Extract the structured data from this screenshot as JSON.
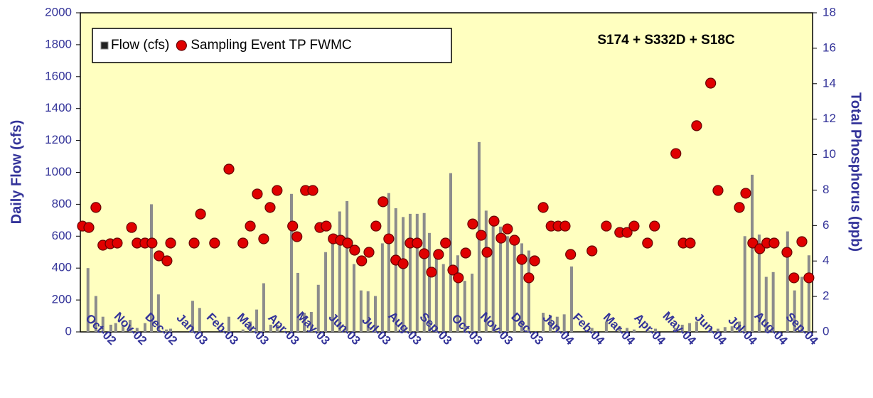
{
  "chart_data": {
    "type": "bar",
    "annotation": "S174 + S332D + S18C",
    "ylabel": "Daily Flow (cfs)",
    "y2label": "Total Phosphorus (ppb)",
    "xlim": [
      -1,
      23
    ],
    "xticks": [
      {
        "value": 0,
        "label": "Oct-02"
      },
      {
        "value": 1,
        "label": "Nov-02"
      },
      {
        "value": 2,
        "label": "Dec-02"
      },
      {
        "value": 3,
        "label": "Jan-03"
      },
      {
        "value": 4,
        "label": "Feb-03"
      },
      {
        "value": 5,
        "label": "Mar-03"
      },
      {
        "value": 6,
        "label": "Apr-03"
      },
      {
        "value": 7,
        "label": "May-03"
      },
      {
        "value": 8,
        "label": "Jun-03"
      },
      {
        "value": 9,
        "label": "Jul-03"
      },
      {
        "value": 10,
        "label": "Aug-03"
      },
      {
        "value": 11,
        "label": "Sep-03"
      },
      {
        "value": 12,
        "label": "Oct-03"
      },
      {
        "value": 13,
        "label": "Nov-03"
      },
      {
        "value": 14,
        "label": "Dec-03"
      },
      {
        "value": 15,
        "label": "Jan-04"
      },
      {
        "value": 16,
        "label": "Feb-04"
      },
      {
        "value": 17,
        "label": "Mar-04"
      },
      {
        "value": 18,
        "label": "Apr-04"
      },
      {
        "value": 19,
        "label": "May-04"
      },
      {
        "value": 20,
        "label": "Jun-04"
      },
      {
        "value": 21,
        "label": "Jul-04"
      },
      {
        "value": 22,
        "label": "Aug-04"
      },
      {
        "value": 23,
        "label": "Sep-04"
      }
    ],
    "ylim": [
      0,
      2000
    ],
    "yticks": [
      0,
      200,
      400,
      600,
      800,
      1000,
      1200,
      1400,
      1600,
      1800,
      2000
    ],
    "y2lim": [
      0,
      18
    ],
    "y2ticks": [
      0,
      2,
      4,
      6,
      8,
      10,
      12,
      14,
      16,
      18
    ],
    "legend": "top-left",
    "background": "#ffffc0",
    "series": [
      {
        "name": "Flow (cfs)",
        "type": "bar",
        "color": "#8c8c8c",
        "x": [
          -0.75,
          -0.49,
          -0.26,
          0,
          0.16,
          0.4,
          0.63,
          0.86,
          1.12,
          1.33,
          1.56,
          1.82,
          1.96,
          2.68,
          2.91,
          3.87,
          4.33,
          4.57,
          4.78,
          5.01,
          5.24,
          5.45,
          5.92,
          6.13,
          6.34,
          6.57,
          6.8,
          7.04,
          7.27,
          7.5,
          7.74,
          7.97,
          8.2,
          8.43,
          8.67,
          8.9,
          9.11,
          9.34,
          9.58,
          9.81,
          10.04,
          10.27,
          10.44,
          10.67,
          10.9,
          11.14,
          11.37,
          11.6,
          11.84,
          12.07,
          12.3,
          12.53,
          12.77,
          13,
          13.23,
          13.47,
          13.7,
          14.17,
          14.4,
          14.63,
          14.86,
          15.1,
          15.77,
          16.24,
          16.68,
          16.92,
          17.15,
          17.61,
          17.85,
          18.5,
          18.73,
          18.97,
          19.2,
          19.66,
          19.9,
          20.13,
          20.36,
          20.6,
          20.78,
          21.02,
          21.25,
          21.48,
          21.71,
          22.18,
          22.41,
          22.65,
          22.88
        ],
        "values": [
          400,
          225,
          95,
          45,
          55,
          45,
          75,
          25,
          55,
          800,
          235,
          15,
          20,
          195,
          150,
          95,
          15,
          65,
          140,
          305,
          45,
          45,
          865,
          370,
          120,
          125,
          295,
          500,
          590,
          755,
          820,
          425,
          260,
          255,
          225,
          555,
          870,
          775,
          720,
          740,
          740,
          745,
          620,
          460,
          425,
          995,
          480,
          320,
          365,
          1190,
          760,
          710,
          660,
          600,
          600,
          555,
          510,
          120,
          105,
          95,
          110,
          410,
          25,
          65,
          35,
          25,
          15,
          10,
          20,
          25,
          45,
          55,
          65,
          25,
          20,
          30,
          35,
          65,
          600,
          985,
          610,
          345,
          375,
          630,
          260,
          345,
          480
        ]
      },
      {
        "name": "Sampling Event TP FWMC",
        "type": "scatter",
        "axis": "y2",
        "color": "#e00000",
        "x": [
          -0.93,
          -0.72,
          -0.49,
          -0.26,
          -0.02,
          0.21,
          0.68,
          0.86,
          1.12,
          1.35,
          1.58,
          1.84,
          1.96,
          2.73,
          2.94,
          3.4,
          3.87,
          4.33,
          4.57,
          4.8,
          5.01,
          5.22,
          5.45,
          5.96,
          6.1,
          6.38,
          6.62,
          6.85,
          7.06,
          7.29,
          7.53,
          7.76,
          7.99,
          8.22,
          8.46,
          8.69,
          8.92,
          9.11,
          9.34,
          9.58,
          9.81,
          10.04,
          10.27,
          10.51,
          10.74,
          10.97,
          11.21,
          11.39,
          11.63,
          11.86,
          12.14,
          12.33,
          12.56,
          12.79,
          13,
          13.23,
          13.47,
          13.7,
          13.89,
          14.17,
          14.43,
          14.66,
          14.89,
          15.07,
          15.77,
          16.24,
          16.68,
          16.92,
          17.15,
          17.59,
          17.82,
          18.52,
          18.76,
          18.99,
          19.2,
          19.66,
          19.9,
          20.6,
          20.81,
          21.04,
          21.27,
          21.5,
          21.74,
          22.16,
          22.39,
          22.65,
          22.88
        ],
        "values": [
          5.97,
          5.89,
          7.02,
          4.89,
          4.97,
          5.01,
          5.89,
          5.01,
          5.01,
          5.01,
          4.29,
          4.01,
          5.01,
          5.01,
          6.65,
          5.01,
          9.18,
          5.01,
          5.97,
          7.78,
          5.25,
          7.02,
          7.98,
          5.97,
          5.37,
          7.98,
          7.98,
          5.89,
          5.97,
          5.25,
          5.17,
          5.01,
          4.61,
          4.01,
          4.49,
          5.97,
          7.34,
          5.25,
          4.05,
          3.85,
          5.01,
          5.01,
          4.41,
          3.37,
          4.37,
          5.01,
          3.49,
          3.05,
          4.45,
          6.09,
          5.45,
          4.49,
          6.25,
          5.29,
          5.81,
          5.17,
          4.09,
          3.05,
          4.01,
          7.02,
          5.97,
          5.97,
          5.97,
          4.37,
          4.57,
          5.97,
          5.61,
          5.61,
          5.97,
          5.01,
          5.97,
          10.06,
          5.01,
          5.01,
          11.63,
          14.03,
          7.98,
          7.02,
          7.82,
          5.01,
          4.69,
          5.01,
          5.01,
          4.49,
          3.05,
          5.09,
          3.05
        ]
      }
    ]
  }
}
